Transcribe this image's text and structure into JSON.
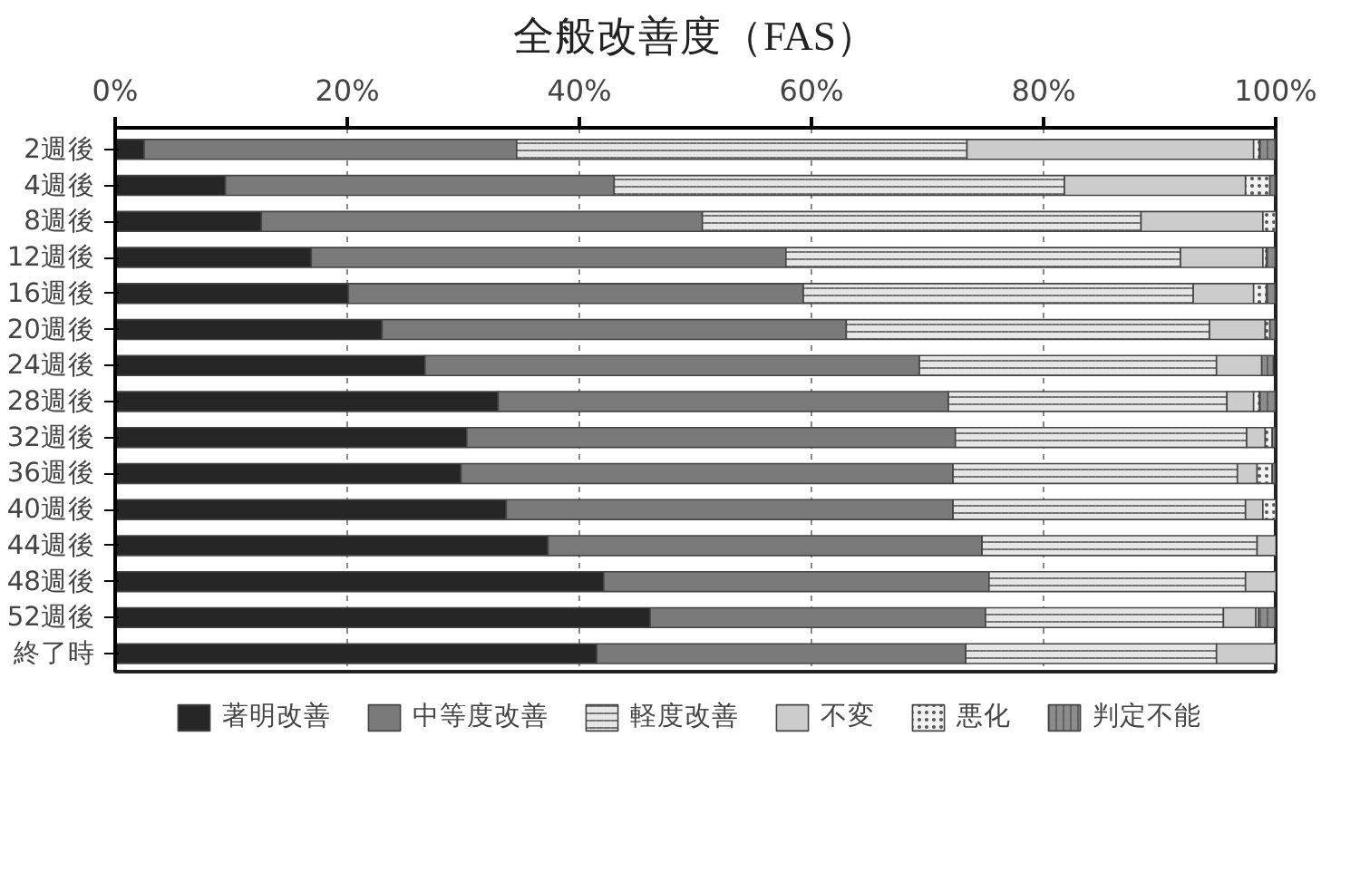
{
  "chart_data": {
    "type": "bar",
    "orientation": "horizontal",
    "stacked": true,
    "title": "全般改善度（FAS）",
    "categories": [
      "2週後",
      "4週後",
      "8週後",
      "12週後",
      "16週後",
      "20週後",
      "24週後",
      "28週後",
      "32週後",
      "36週後",
      "40週後",
      "44週後",
      "48週後",
      "52週後",
      "終了時"
    ],
    "series": [
      {
        "name": "著明改善",
        "color": "#262626",
        "values": [
          2.5,
          9.5,
          12.6,
          16.9,
          20.1,
          23.0,
          26.7,
          33.0,
          30.3,
          29.8,
          33.7,
          37.3,
          42.1,
          46.1,
          41.5
        ]
      },
      {
        "name": "中等度改善",
        "color": "#7a7a7a",
        "values": [
          32.1,
          33.5,
          38.0,
          40.9,
          39.2,
          40.0,
          42.6,
          38.8,
          42.1,
          42.4,
          38.5,
          37.4,
          33.2,
          28.9,
          31.8
        ]
      },
      {
        "name": "軽度改善",
        "color": "#e6e6e6",
        "values": [
          38.8,
          38.8,
          37.8,
          34.0,
          33.6,
          31.3,
          25.6,
          24.0,
          25.1,
          24.5,
          25.2,
          23.7,
          22.1,
          20.5,
          21.6
        ]
      },
      {
        "name": "不変",
        "color": "#cccccc",
        "values": [
          24.7,
          15.6,
          10.5,
          7.1,
          5.2,
          4.8,
          3.9,
          2.3,
          1.6,
          1.7,
          1.5,
          1.6,
          2.6,
          2.8,
          5.1
        ]
      },
      {
        "name": "悪化",
        "color": "#f2f2f2",
        "values": [
          0.5,
          2.1,
          1.1,
          0.3,
          1.1,
          0.4,
          null,
          0.5,
          0.6,
          1.3,
          1.1,
          0,
          0,
          0.2,
          0
        ]
      },
      {
        "name": "判定不能",
        "color": "#8c8c8c",
        "values": [
          1.4,
          0.5,
          0,
          0.8,
          0.8,
          0.5,
          1.0,
          1.4,
          0.3,
          0.3,
          0,
          0,
          0,
          1.5,
          0
        ]
      }
    ],
    "xlim": [
      0,
      100
    ],
    "xticks": [
      {
        "value": 0,
        "label": "0%"
      },
      {
        "value": 20,
        "label": "20%"
      },
      {
        "value": 40,
        "label": "40%"
      },
      {
        "value": 60,
        "label": "60%"
      },
      {
        "value": 80,
        "label": "80%"
      },
      {
        "value": 100,
        "label": "100%"
      }
    ],
    "grid": "x",
    "legend": "bottom"
  }
}
